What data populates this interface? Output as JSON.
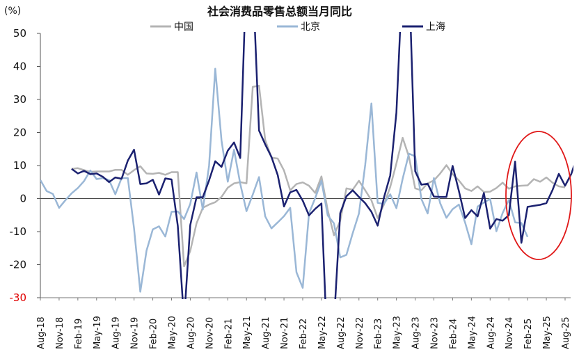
{
  "chart_data": {
    "type": "line",
    "title": "社会消费品零售总额当月同比",
    "unit_label": "(%)",
    "ylim": [
      -30,
      50
    ],
    "yticks": [
      50,
      40,
      30,
      20,
      10,
      0,
      -10,
      -20,
      -30
    ],
    "red_ticks": [
      -30
    ],
    "x_labels": [
      "Aug-18",
      "Nov-18",
      "Feb-19",
      "May-19",
      "Aug-19",
      "Nov-19",
      "Feb-20",
      "May-20",
      "Aug-20",
      "Nov-20",
      "Feb-21",
      "May-21",
      "Aug-21",
      "Nov-21",
      "Feb-22",
      "May-22",
      "Aug-22",
      "Nov-22",
      "Feb-23",
      "May-23",
      "Aug-23",
      "Nov-23",
      "Feb-24",
      "May-24",
      "Aug-24",
      "Nov-24",
      "Feb-25",
      "May-25",
      "Aug-25"
    ],
    "x_start": "2018-08",
    "n_months": 85,
    "grid": false,
    "legend_position": "top",
    "series": [
      {
        "name": "中国",
        "color": "#b4b4b4",
        "width": 2.5,
        "values": [
          9.0,
          9.2,
          8.6,
          8.1,
          8.2,
          8.2,
          8.2,
          8.7,
          8.7,
          7.2,
          8.6,
          9.8,
          7.6,
          7.5,
          7.8,
          7.2,
          8.0,
          8.0,
          -20.5,
          -15.8,
          -7.5,
          -2.8,
          -1.8,
          -1.1,
          0.5,
          3.3,
          4.6,
          5.0,
          4.6,
          33.8,
          34.2,
          17.7,
          12.4,
          12.1,
          8.5,
          2.5,
          4.4,
          4.9,
          3.9,
          1.7,
          6.7,
          -3.5,
          -11.1,
          -6.7,
          3.1,
          2.7,
          5.4,
          2.5,
          -0.5,
          -5.9,
          -1.8,
          3.5,
          10.6,
          18.4,
          12.7,
          3.1,
          2.5,
          4.6,
          5.5,
          7.6,
          10.1,
          7.4,
          5.5,
          3.1,
          2.3,
          3.7,
          2.0,
          2.1,
          3.2,
          4.8,
          3.0,
          3.7,
          3.9,
          4.0,
          5.9,
          5.1,
          6.4,
          4.8,
          3.7,
          3.4
        ],
        "start_index": 5
      },
      {
        "name": "北京",
        "color": "#9ab7d6",
        "width": 2.5,
        "values": [
          5.6,
          2.3,
          1.4,
          -2.8,
          -0.5,
          1.6,
          3.2,
          5.3,
          8.5,
          5.9,
          6.2,
          5.6,
          1.3,
          6.2,
          6.2,
          -9.0,
          -28.2,
          -15.7,
          -9.3,
          -8.4,
          -11.5,
          -4.0,
          -3.9,
          -6.2,
          -1.6,
          7.9,
          -3.3,
          9.9,
          39.3,
          17.6,
          5.1,
          14.8,
          4.5,
          -3.8,
          1.2,
          6.5,
          -5.4,
          -9.0,
          -7.2,
          -5.3,
          -2.8,
          -22.3,
          -27.0,
          -4.5,
          0.2,
          5.4,
          -5.1,
          -7.5,
          -17.8,
          -17.0,
          -10.5,
          -4.5,
          10.2,
          28.8,
          -1.3,
          -1.6,
          1.3,
          -2.9,
          6.0,
          13.6,
          12.8,
          -0.1,
          -4.5,
          6.2,
          -1.4,
          -5.8,
          -3.2,
          -1.8,
          -7.3,
          -13.8,
          -2.4,
          -1.2,
          -0.1,
          -9.9,
          -4.4,
          -0.4,
          -7.2,
          -7.4,
          -11.6
        ],
        "start_index": 0
      },
      {
        "name": "上海",
        "color": "#1b2170",
        "width": 2.5,
        "values": [
          9.0,
          7.6,
          8.4,
          7.4,
          7.6,
          6.6,
          5.0,
          6.4,
          6.0,
          11.5,
          14.8,
          4.4,
          4.6,
          5.7,
          1.2,
          6.1,
          5.8,
          -8.3,
          -37.0,
          -8.0,
          0.4,
          0.4,
          5.5,
          11.3,
          9.6,
          14.5,
          17.0,
          12.3,
          70.0,
          67.0,
          20.6,
          16.4,
          12.6,
          7.1,
          -2.4,
          1.9,
          2.6,
          -0.6,
          -5.1,
          -3.1,
          -1.5,
          -48.3,
          -37.5,
          -4.4,
          0.7,
          2.5,
          0.5,
          -1.4,
          -4.0,
          -8.2,
          0.3,
          7.0,
          26.0,
          68.0,
          69.0,
          8.3,
          4.2,
          4.5,
          0.6,
          0.5,
          0.5,
          9.9,
          2.3,
          -5.9,
          -3.5,
          -5.4,
          1.7,
          -9.1,
          -6.2,
          -6.7,
          -5.0,
          11.2,
          -13.4,
          -2.5,
          -2.2,
          -1.9,
          -1.4,
          2.6,
          7.5,
          3.9,
          7.5,
          13.2
        ],
        "start_index": 5
      }
    ]
  }
}
